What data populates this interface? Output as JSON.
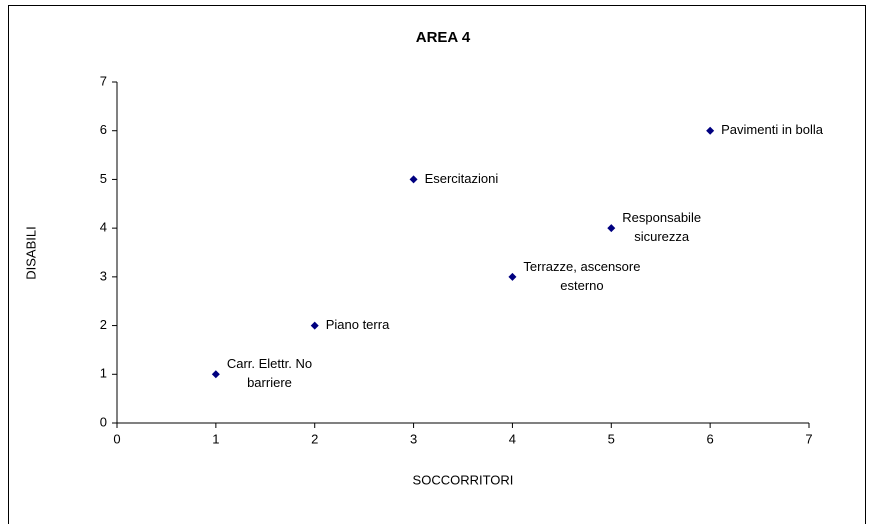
{
  "chart_data": {
    "type": "scatter",
    "title": "AREA 4",
    "x_label": "SOCCORRITORI",
    "y_label": "DISABILI",
    "series": [
      {
        "color": "#000080",
        "x": [
          1,
          2,
          3,
          4,
          5,
          6
        ],
        "values": [
          1,
          2,
          5,
          3,
          4,
          6
        ],
        "labels": [
          [
            "Carr. Elettr. No",
            "barriere"
          ],
          [
            "Piano terra"
          ],
          [
            "Esercitazioni"
          ],
          [
            "Terrazze, ascensore",
            "esterno"
          ],
          [
            "Responsabile",
            "sicurezza"
          ],
          [
            "Pavimenti in bolla"
          ]
        ]
      }
    ],
    "xlim": [
      0,
      7
    ],
    "xticks": [
      0,
      1,
      2,
      3,
      4,
      5,
      6,
      7
    ],
    "ylim": [
      0,
      7
    ],
    "yticks": [
      0,
      1,
      2,
      3,
      4,
      5,
      6,
      7
    ],
    "grid": false
  }
}
